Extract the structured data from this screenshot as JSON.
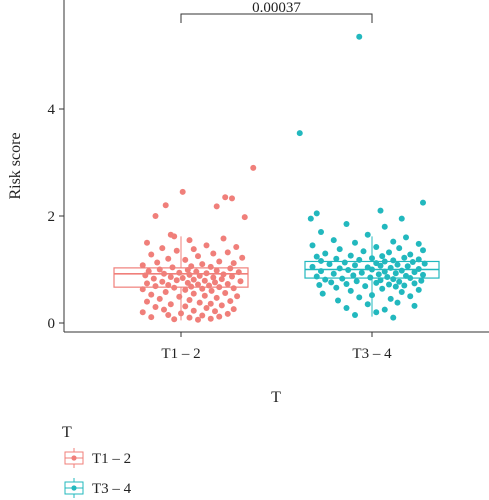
{
  "chart_data": {
    "type": "box",
    "xlabel": "T",
    "ylabel": "Risk score",
    "ylim": [
      0,
      5.6
    ],
    "yticks": [
      0,
      2,
      4
    ],
    "categories": [
      "T1 – 2",
      "T3 – 4"
    ],
    "legend": {
      "title": "T",
      "position": "bottom-left",
      "entries": [
        "T1 – 2",
        "T3 – 4"
      ]
    },
    "annotation": {
      "text": "0.00037",
      "between": [
        "T1 – 2",
        "T3 – 4"
      ]
    },
    "colors": [
      "#F07F7A",
      "#22B8BE"
    ],
    "boxes": [
      {
        "name": "T1 – 2",
        "q1": 0.67,
        "median": 0.92,
        "q3": 1.03,
        "whisker_low": 0.05,
        "whisker_high": 1.62
      },
      {
        "name": "T3 – 4",
        "q1": 0.84,
        "median": 1.0,
        "q3": 1.15,
        "whisker_low": 0.12,
        "whisker_high": 1.62
      }
    ],
    "points": [
      [
        0.02,
        2.45
      ],
      [
        0.85,
        2.9
      ],
      [
        0.52,
        2.35
      ],
      [
        0.6,
        2.33
      ],
      [
        -0.18,
        2.2
      ],
      [
        0.42,
        2.18
      ],
      [
        -0.3,
        2.0
      ],
      [
        0.75,
        1.98
      ],
      [
        -0.12,
        1.65
      ],
      [
        -0.08,
        1.62
      ],
      [
        0.5,
        1.58
      ],
      [
        0.1,
        1.55
      ],
      [
        -0.4,
        1.5
      ],
      [
        0.3,
        1.45
      ],
      [
        0.65,
        1.42
      ],
      [
        -0.22,
        1.4
      ],
      [
        0.15,
        1.38
      ],
      [
        -0.05,
        1.35
      ],
      [
        0.55,
        1.32
      ],
      [
        0.38,
        1.3
      ],
      [
        -0.35,
        1.28
      ],
      [
        0.2,
        1.25
      ],
      [
        0.72,
        1.22
      ],
      [
        -0.15,
        1.2
      ],
      [
        0.05,
        1.18
      ],
      [
        0.45,
        1.15
      ],
      [
        -0.28,
        1.13
      ],
      [
        0.62,
        1.12
      ],
      [
        0.25,
        1.1
      ],
      [
        -0.45,
        1.08
      ],
      [
        0.12,
        1.06
      ],
      [
        0.35,
        1.05
      ],
      [
        -0.1,
        1.04
      ],
      [
        0.58,
        1.02
      ],
      [
        -0.25,
        1.0
      ],
      [
        0.08,
        0.99
      ],
      [
        0.42,
        0.98
      ],
      [
        -0.38,
        0.97
      ],
      [
        0.18,
        0.96
      ],
      [
        0.68,
        0.95
      ],
      [
        -0.02,
        0.94
      ],
      [
        0.3,
        0.93
      ],
      [
        -0.2,
        0.92
      ],
      [
        0.5,
        0.91
      ],
      [
        0.1,
        0.9
      ],
      [
        -0.42,
        0.89
      ],
      [
        0.22,
        0.88
      ],
      [
        0.6,
        0.87
      ],
      [
        -0.12,
        0.86
      ],
      [
        0.38,
        0.85
      ],
      [
        0.02,
        0.84
      ],
      [
        -0.32,
        0.83
      ],
      [
        0.48,
        0.82
      ],
      [
        0.15,
        0.81
      ],
      [
        -0.05,
        0.8
      ],
      [
        0.28,
        0.79
      ],
      [
        0.7,
        0.78
      ],
      [
        -0.22,
        0.77
      ],
      [
        0.4,
        0.76
      ],
      [
        0.08,
        0.75
      ],
      [
        -0.4,
        0.74
      ],
      [
        0.55,
        0.73
      ],
      [
        0.2,
        0.72
      ],
      [
        -0.15,
        0.71
      ],
      [
        0.33,
        0.7
      ],
      [
        -0.3,
        0.69
      ],
      [
        0.12,
        0.68
      ],
      [
        0.45,
        0.67
      ],
      [
        -0.08,
        0.66
      ],
      [
        0.62,
        0.65
      ],
      [
        0.25,
        0.64
      ],
      [
        -0.45,
        0.63
      ],
      [
        0.05,
        0.62
      ],
      [
        0.36,
        0.6
      ],
      [
        -0.18,
        0.58
      ],
      [
        0.52,
        0.56
      ],
      [
        0.15,
        0.55
      ],
      [
        -0.35,
        0.53
      ],
      [
        0.28,
        0.51
      ],
      [
        0.66,
        0.5
      ],
      [
        -0.02,
        0.49
      ],
      [
        0.42,
        0.47
      ],
      [
        -0.25,
        0.45
      ],
      [
        0.1,
        0.43
      ],
      [
        0.58,
        0.41
      ],
      [
        -0.4,
        0.4
      ],
      [
        0.22,
        0.38
      ],
      [
        0.35,
        0.36
      ],
      [
        -0.12,
        0.35
      ],
      [
        0.48,
        0.33
      ],
      [
        0.05,
        0.31
      ],
      [
        -0.3,
        0.3
      ],
      [
        0.3,
        0.28
      ],
      [
        0.62,
        0.26
      ],
      [
        -0.2,
        0.25
      ],
      [
        0.15,
        0.23
      ],
      [
        0.4,
        0.22
      ],
      [
        -0.45,
        0.2
      ],
      [
        0.0,
        0.18
      ],
      [
        0.55,
        0.17
      ],
      [
        -0.15,
        0.15
      ],
      [
        0.25,
        0.14
      ],
      [
        0.45,
        0.12
      ],
      [
        -0.35,
        0.11
      ],
      [
        0.1,
        0.1
      ],
      [
        0.35,
        0.08
      ],
      [
        -0.08,
        0.07
      ],
      [
        0.2,
        0.06
      ],
      [
        -0.15,
        5.35
      ],
      [
        -0.85,
        3.55
      ],
      [
        0.6,
        2.25
      ],
      [
        -0.65,
        2.05
      ],
      [
        -0.72,
        1.95
      ],
      [
        0.35,
        1.95
      ],
      [
        0.1,
        2.1
      ],
      [
        -0.3,
        1.85
      ],
      [
        0.15,
        1.8
      ],
      [
        -0.6,
        1.7
      ],
      [
        -0.05,
        1.65
      ],
      [
        0.4,
        1.6
      ],
      [
        -0.45,
        1.55
      ],
      [
        0.25,
        1.52
      ],
      [
        -0.2,
        1.5
      ],
      [
        0.55,
        1.48
      ],
      [
        -0.7,
        1.45
      ],
      [
        0.05,
        1.42
      ],
      [
        0.32,
        1.4
      ],
      [
        -0.38,
        1.38
      ],
      [
        0.6,
        1.36
      ],
      [
        -0.1,
        1.34
      ],
      [
        0.2,
        1.32
      ],
      [
        -0.55,
        1.3
      ],
      [
        0.45,
        1.28
      ],
      [
        -0.25,
        1.26
      ],
      [
        0.12,
        1.25
      ],
      [
        -0.65,
        1.24
      ],
      [
        0.38,
        1.22
      ],
      [
        0.0,
        1.21
      ],
      [
        -0.42,
        1.2
      ],
      [
        0.55,
        1.19
      ],
      [
        -0.15,
        1.18
      ],
      [
        0.25,
        1.17
      ],
      [
        -0.6,
        1.16
      ],
      [
        0.15,
        1.15
      ],
      [
        0.48,
        1.14
      ],
      [
        -0.32,
        1.13
      ],
      [
        0.05,
        1.12
      ],
      [
        0.62,
        1.11
      ],
      [
        -0.5,
        1.1
      ],
      [
        0.3,
        1.09
      ],
      [
        -0.2,
        1.08
      ],
      [
        0.1,
        1.07
      ],
      [
        0.42,
        1.06
      ],
      [
        -0.7,
        1.05
      ],
      [
        -0.05,
        1.04
      ],
      [
        0.22,
        1.03
      ],
      [
        -0.38,
        1.02
      ],
      [
        0.55,
        1.01
      ],
      [
        0.0,
        1.0
      ],
      [
        -0.28,
        0.99
      ],
      [
        0.35,
        0.98
      ],
      [
        -0.6,
        0.97
      ],
      [
        0.15,
        0.96
      ],
      [
        0.5,
        0.95
      ],
      [
        -0.12,
        0.94
      ],
      [
        0.28,
        0.93
      ],
      [
        -0.45,
        0.92
      ],
      [
        0.08,
        0.91
      ],
      [
        0.6,
        0.9
      ],
      [
        -0.22,
        0.89
      ],
      [
        0.4,
        0.88
      ],
      [
        -0.65,
        0.87
      ],
      [
        0.18,
        0.86
      ],
      [
        -0.02,
        0.85
      ],
      [
        0.45,
        0.84
      ],
      [
        -0.35,
        0.83
      ],
      [
        0.25,
        0.82
      ],
      [
        -0.55,
        0.81
      ],
      [
        0.1,
        0.8
      ],
      [
        0.58,
        0.79
      ],
      [
        -0.18,
        0.78
      ],
      [
        0.32,
        0.77
      ],
      [
        -0.48,
        0.76
      ],
      [
        0.05,
        0.75
      ],
      [
        0.5,
        0.74
      ],
      [
        -0.3,
        0.73
      ],
      [
        0.2,
        0.72
      ],
      [
        -0.62,
        0.71
      ],
      [
        0.38,
        0.7
      ],
      [
        -0.08,
        0.69
      ],
      [
        0.28,
        0.68
      ],
      [
        -0.42,
        0.66
      ],
      [
        0.12,
        0.64
      ],
      [
        0.55,
        0.62
      ],
      [
        -0.25,
        0.6
      ],
      [
        0.35,
        0.58
      ],
      [
        -0.58,
        0.55
      ],
      [
        0.0,
        0.52
      ],
      [
        0.45,
        0.5
      ],
      [
        -0.15,
        0.48
      ],
      [
        0.22,
        0.45
      ],
      [
        -0.4,
        0.42
      ],
      [
        0.3,
        0.38
      ],
      [
        -0.05,
        0.35
      ],
      [
        0.5,
        0.32
      ],
      [
        -0.3,
        0.28
      ],
      [
        0.15,
        0.25
      ],
      [
        0.05,
        0.2
      ],
      [
        -0.2,
        0.15
      ],
      [
        0.25,
        0.1
      ]
    ]
  }
}
